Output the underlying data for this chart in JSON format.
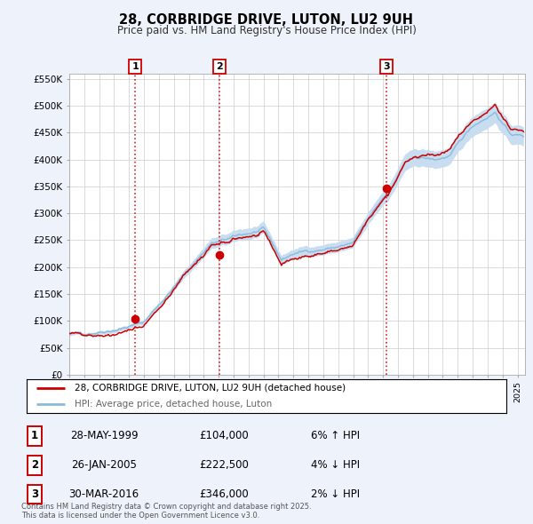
{
  "title": "28, CORBRIDGE DRIVE, LUTON, LU2 9UH",
  "subtitle": "Price paid vs. HM Land Registry's House Price Index (HPI)",
  "ylabel_ticks": [
    "£0",
    "£50K",
    "£100K",
    "£150K",
    "£200K",
    "£250K",
    "£300K",
    "£350K",
    "£400K",
    "£450K",
    "£500K",
    "£550K"
  ],
  "ytick_values": [
    0,
    50000,
    100000,
    150000,
    200000,
    250000,
    300000,
    350000,
    400000,
    450000,
    500000,
    550000
  ],
  "ylim": [
    0,
    560000
  ],
  "xlim_start": 1995.0,
  "xlim_end": 2025.5,
  "sale_dates": [
    1999.41,
    2005.07,
    2016.25
  ],
  "sale_prices": [
    104000,
    222500,
    346000
  ],
  "sale_labels": [
    "1",
    "2",
    "3"
  ],
  "sale_label_dates": [
    "28-MAY-1999",
    "26-JAN-2005",
    "30-MAR-2016"
  ],
  "sale_label_prices": [
    "£104,000",
    "£222,500",
    "£346,000"
  ],
  "sale_label_pcts": [
    "6% ↑ HPI",
    "4% ↓ HPI",
    "2% ↓ HPI"
  ],
  "legend_line1": "28, CORBRIDGE DRIVE, LUTON, LU2 9UH (detached house)",
  "legend_line2": "HPI: Average price, detached house, Luton",
  "footer": "Contains HM Land Registry data © Crown copyright and database right 2025.\nThis data is licensed under the Open Government Licence v3.0.",
  "bg_color": "#eef2fb",
  "plot_bg_color": "#ffffff",
  "red_line_color": "#cc0000",
  "blue_line_color": "#88bbdd",
  "blue_fill_color": "#c8ddef",
  "grid_color": "#cccccc",
  "sale_dot_color": "#cc0000",
  "vline_color": "#cc0000"
}
